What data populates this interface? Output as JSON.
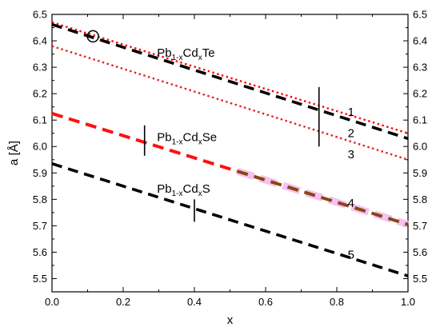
{
  "chart_data": {
    "type": "line",
    "xlabel": "x",
    "ylabel": "a [Å]",
    "xlim": [
      0.0,
      1.0
    ],
    "ylim": [
      5.45,
      6.5
    ],
    "x_ticks": [
      "0.0",
      "0.2",
      "0.4",
      "0.6",
      "0.8",
      "1.0"
    ],
    "y_ticks": [
      "5.5",
      "5.6",
      "5.7",
      "5.8",
      "5.9",
      "6.0",
      "6.1",
      "6.2",
      "6.3",
      "6.4",
      "6.5"
    ],
    "right_axis_ticks": [
      "5.5",
      "5.6",
      "5.7",
      "5.8",
      "5.9",
      "6.0",
      "6.1",
      "6.2",
      "6.3",
      "6.4",
      "6.5"
    ],
    "grid": false,
    "series": [
      {
        "label": "1",
        "style": "dotted",
        "color": "#ff0000",
        "x": [
          0.0,
          1.0
        ],
        "y": [
          6.47,
          6.05
        ]
      },
      {
        "label": "2",
        "style": "dashed",
        "color": "#000000",
        "x": [
          0.0,
          1.0
        ],
        "y": [
          6.462,
          6.03
        ]
      },
      {
        "label": "3",
        "style": "dotted",
        "color": "#e02020",
        "x": [
          0.0,
          1.0
        ],
        "y": [
          6.38,
          5.95
        ]
      },
      {
        "label": "4",
        "style": "dashed",
        "color": "#ff1010",
        "overlay_color": "#8b4513",
        "highlight_color": "#f2b8f0",
        "overlay_from_x": 0.52,
        "x": [
          0.0,
          1.0
        ],
        "y": [
          6.125,
          5.705
        ]
      },
      {
        "label": "5",
        "style": "dashed",
        "color": "#000000",
        "x": [
          0.0,
          1.0
        ],
        "y": [
          5.935,
          5.51
        ]
      }
    ],
    "markers": [
      {
        "type": "circle",
        "x": 0.115,
        "y": 6.417
      },
      {
        "type": "vline",
        "x": 0.75,
        "y0": 6.0,
        "y1": 6.225
      },
      {
        "type": "vline",
        "x": 0.26,
        "y0": 5.965,
        "y1": 6.08
      },
      {
        "type": "vline",
        "x": 0.4,
        "y0": 5.715,
        "y1": 5.8
      }
    ],
    "annotations": [
      {
        "base": "Pb",
        "sub": "1-x",
        "mid": "Cd",
        "sub2": "x",
        "tail": "Te",
        "x": 0.295,
        "y": 6.34
      },
      {
        "base": "Pb",
        "sub": "1-x",
        "mid": "Cd",
        "sub2": "x",
        "tail": "Se",
        "x": 0.295,
        "y": 6.02
      },
      {
        "base": "Pb",
        "sub": "1-x",
        "mid": "Cd",
        "sub2": "x",
        "tail": "S",
        "x": 0.295,
        "y": 5.825
      }
    ],
    "curve_labels": [
      {
        "text": "1",
        "x": 0.84,
        "y": 6.115
      },
      {
        "text": "2",
        "x": 0.84,
        "y": 6.035
      },
      {
        "text": "3",
        "x": 0.84,
        "y": 5.955
      },
      {
        "text": "4",
        "x": 0.84,
        "y": 5.77
      },
      {
        "text": "5",
        "x": 0.84,
        "y": 5.575
      }
    ]
  }
}
